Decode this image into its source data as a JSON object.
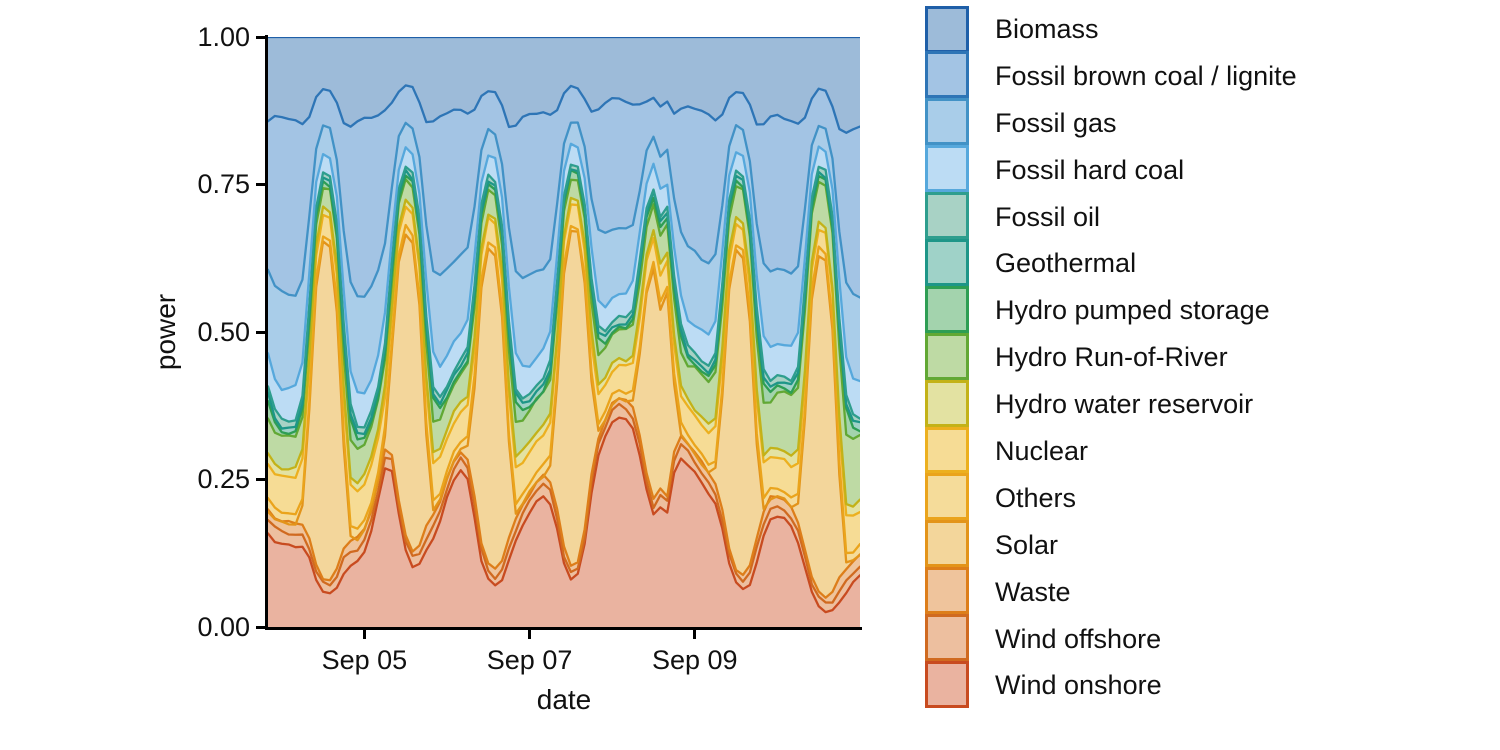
{
  "figure": {
    "background": "#ffffff",
    "axis_color": "#000000",
    "text_color": "#111111"
  },
  "x_axis": {
    "label": "date",
    "ticks": [
      {
        "label": "Sep 05",
        "hour": 28
      },
      {
        "label": "Sep 07",
        "hour": 76
      },
      {
        "label": "Sep 09",
        "hour": 124
      }
    ]
  },
  "y_axis": {
    "label": "power",
    "ticks": [
      {
        "label": "0.00",
        "value": 0.0
      },
      {
        "label": "0.25",
        "value": 0.25
      },
      {
        "label": "0.50",
        "value": 0.5
      },
      {
        "label": "0.75",
        "value": 0.75
      },
      {
        "label": "1.00",
        "value": 1.0
      }
    ]
  },
  "chart_data": {
    "type": "area",
    "variant": "stacked-normalized",
    "title": "",
    "xlabel": "date",
    "ylabel": "power",
    "ylim": [
      0,
      1
    ],
    "grid": false,
    "legend_position": "right",
    "x_start_hour": 0,
    "x_end_hour": 172,
    "step_hours": 2,
    "clock_offset_hours": 20,
    "x_tick_labels": [
      "Sep 05",
      "Sep 07",
      "Sep 09"
    ],
    "normalize": true,
    "jitter": 0.0035,
    "stack_order": "reverse-legend (Wind onshore at bottom, Biomass on top)",
    "series": [
      {
        "label": "Biomass",
        "line": "#1f5fa8",
        "fill": "#9dbbd9",
        "values": 6.7
      },
      {
        "label": "Fossil brown coal / lignite",
        "line": "#2e75b6",
        "fill": "#a3c4e4",
        "values": [
          11.6,
          13.8,
          14.5,
          14.3,
          13.8,
          12.2,
          8.8,
          5.8,
          4.8,
          5.0,
          5.6,
          8.0,
          11.6,
          13.8,
          14.5,
          14.3,
          13.8,
          12.2,
          8.8,
          5.8,
          4.8,
          5.0,
          5.6,
          8.0,
          11.6,
          13.8,
          14.2,
          14.0,
          13.5,
          12.0,
          8.6,
          5.7,
          4.7,
          4.9,
          5.5,
          7.8,
          11.4,
          13.5,
          14.2,
          14.0,
          13.5,
          12.0,
          8.6,
          5.7,
          4.7,
          4.9,
          5.5,
          7.8,
          11.4,
          13.5,
          13.8,
          13.6,
          13.1,
          11.6,
          8.4,
          5.5,
          4.6,
          4.8,
          5.3,
          7.6,
          11.0,
          13.1,
          13.3,
          13.2,
          12.7,
          11.2,
          8.1,
          5.3,
          4.4,
          4.6,
          5.2,
          7.4,
          10.7,
          12.7,
          13.1,
          12.9,
          12.4,
          11.0,
          7.9,
          5.2,
          4.3,
          4.5,
          5.0,
          7.2,
          10.4,
          12.4,
          13.0
        ]
      },
      {
        "label": "Fossil gas",
        "line": "#4292c6",
        "fill": "#a9cde9",
        "values": [
          6.6,
          7.8,
          8.2,
          7.8,
          7.4,
          6.4,
          4.8,
          3.8,
          3.4,
          3.4,
          3.7,
          4.6,
          6.6,
          7.8,
          8.2,
          7.8,
          7.4,
          6.4,
          4.8,
          3.8,
          3.4,
          3.4,
          3.7,
          4.6,
          6.6,
          7.8,
          7.8,
          7.4,
          7.0,
          6.1,
          4.6,
          3.6,
          3.2,
          3.2,
          3.5,
          4.4,
          6.3,
          7.4,
          7.8,
          7.4,
          7.0,
          6.1,
          4.6,
          3.6,
          3.2,
          3.2,
          3.5,
          4.4,
          6.3,
          7.4,
          7.4,
          7.0,
          6.7,
          5.8,
          4.3,
          3.4,
          3.1,
          3.1,
          3.3,
          4.1,
          5.9,
          7.0,
          7.0,
          6.6,
          6.3,
          5.4,
          4.1,
          3.2,
          2.9,
          2.9,
          3.1,
          3.9,
          5.6,
          6.6,
          6.6,
          6.2,
          5.9,
          5.1,
          3.8,
          3.0,
          2.7,
          2.7,
          3.0,
          3.7,
          5.3,
          6.2,
          6.4
        ]
      },
      {
        "label": "Fossil hard coal",
        "line": "#56a8dc",
        "fill": "#bcdcf4",
        "values": 2.6
      },
      {
        "label": "Fossil oil",
        "line": "#2e9e8e",
        "fill": "#a8d2c5",
        "values": 0.55
      },
      {
        "label": "Geothermal",
        "line": "#1e9688",
        "fill": "#9fd2c8",
        "values": 0.5
      },
      {
        "label": "Hydro pumped storage",
        "line": "#2e9e54",
        "fill": "#a3d3ad",
        "daily": [
          0.3,
          0.2,
          0.2,
          0.5,
          1.0,
          0.9,
          0.8,
          0.7,
          0.7,
          1.1,
          1.6,
          0.8
        ]
      },
      {
        "label": "Hydro Run-of-River",
        "line": "#62a834",
        "fill": "#bedaa4",
        "day_values": [
          2.6,
          2.6,
          2.7,
          2.8,
          3.0,
          3.8,
          5.0
        ]
      },
      {
        "label": "Hydro water reservoir",
        "line": "#c3b218",
        "fill": "#e3e2a2",
        "values": 0.8
      },
      {
        "label": "Nuclear",
        "line": "#ecb01f",
        "fill": "#f6dc95",
        "day_values": [
          2.9,
          2.9,
          2.8,
          2.8,
          2.7,
          2.6,
          2.5
        ]
      },
      {
        "label": "Others",
        "line": "#eaa41c",
        "fill": "#f5dc9a",
        "values": 0.8
      },
      {
        "label": "Solar",
        "line": "#e3941a",
        "fill": "#f3d69b",
        "values": [
          0,
          0,
          0,
          0,
          0,
          1.3,
          11.0,
          31.0,
          43.0,
          42.0,
          26.0,
          7.8,
          0.4,
          0,
          0,
          0,
          0,
          1.2,
          10.5,
          29.5,
          40.9,
          39.9,
          24.7,
          7.4,
          0.4,
          0,
          0,
          0,
          0,
          1.2,
          10.0,
          28.2,
          39.1,
          38.2,
          23.7,
          7.1,
          0.4,
          0,
          0,
          0,
          0,
          1.4,
          11.6,
          32.6,
          45.2,
          44.1,
          27.3,
          8.2,
          0.4,
          0,
          0,
          0,
          0,
          1.0,
          8.0,
          19.0,
          26.0,
          17.0,
          21.0,
          6.0,
          0.3,
          0,
          0,
          0,
          0,
          1.2,
          10.0,
          28.2,
          39.1,
          38.2,
          23.7,
          7.1,
          0.4,
          0,
          0,
          0,
          0,
          1.3,
          10.8,
          30.4,
          42.1,
          41.2,
          25.5,
          7.6,
          0.4,
          0,
          0
        ]
      },
      {
        "label": "Waste",
        "line": "#dd7e1a",
        "fill": "#efc49c",
        "values": 0.8
      },
      {
        "label": "Wind offshore",
        "line": "#d06a20",
        "fill": "#edbf9f",
        "day_values": [
          1.0,
          1.0,
          1.0,
          0.95,
          1.1,
          0.95,
          0.85
        ]
      },
      {
        "label": "Wind onshore",
        "line": "#c84b20",
        "fill": "#eab3a0",
        "values": [
          7.4,
          7.2,
          7.0,
          6.7,
          6.4,
          6.2,
          5.8,
          5.2,
          4.6,
          4.2,
          4.0,
          4.2,
          4.6,
          5.2,
          6.2,
          8.0,
          11.0,
          14.5,
          16.0,
          14.0,
          10.5,
          8.0,
          6.5,
          6.0,
          7.0,
          9.0,
          11.5,
          13.5,
          14.5,
          13.0,
          10.0,
          7.5,
          6.0,
          5.0,
          4.6,
          5.0,
          6.5,
          8.5,
          10.0,
          11.0,
          11.5,
          10.5,
          9.0,
          7.5,
          6.5,
          7.0,
          9.0,
          12.0,
          16.0,
          19.5,
          22.0,
          22.5,
          21.5,
          19.5,
          17.0,
          14.5,
          12.5,
          11.5,
          12.0,
          13.5,
          15.5,
          15.5,
          14.5,
          13.0,
          11.5,
          10.0,
          8.5,
          7.0,
          5.5,
          4.5,
          4.2,
          5.0,
          7.0,
          9.0,
          9.5,
          9.0,
          8.0,
          6.5,
          5.0,
          3.8,
          2.8,
          2.0,
          1.6,
          1.8,
          2.4,
          3.2,
          3.8
        ]
      }
    ]
  }
}
